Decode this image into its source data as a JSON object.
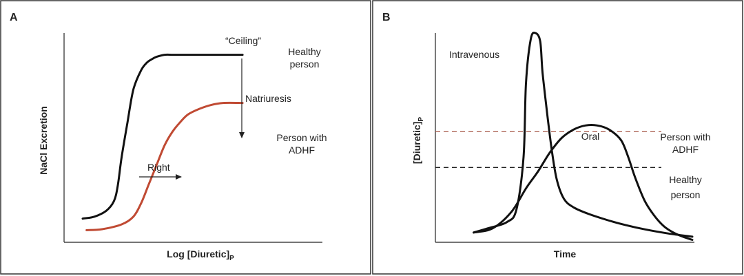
{
  "chart_data": [
    {
      "panel": "A",
      "type": "line",
      "xlabel": "Log [Diuretic]",
      "xlabel_subscript": "P",
      "ylabel": "NaCl Excretion",
      "x_range": [
        0,
        10
      ],
      "y_range": [
        0,
        10
      ],
      "grid": false,
      "series": [
        {
          "name": "Healthy person",
          "color": "#111111",
          "x": [
            0.0,
            0.6,
            1.2,
            1.6,
            1.8,
            2.0,
            2.3,
            2.6,
            3.0,
            3.3,
            3.6,
            3.8,
            4.2,
            4.6,
            5.0,
            5.6,
            6.2,
            7.0,
            8.2
          ],
          "y": [
            0.8,
            0.9,
            1.2,
            1.7,
            2.5,
            4.0,
            5.8,
            7.5,
            8.5,
            8.9,
            9.1,
            9.2,
            9.3,
            9.3,
            9.3,
            9.3,
            9.3,
            9.3,
            9.3
          ]
        },
        {
          "name": "Person with ADHF",
          "color": "#c04a33",
          "x": [
            0.2,
            1.0,
            2.0,
            2.6,
            3.0,
            3.4,
            3.8,
            4.2,
            4.6,
            5.0,
            5.4,
            6.0,
            6.6,
            7.2,
            8.2
          ],
          "y": [
            0.2,
            0.25,
            0.5,
            0.9,
            1.6,
            2.6,
            3.6,
            4.6,
            5.3,
            5.8,
            6.2,
            6.5,
            6.7,
            6.8,
            6.8
          ]
        }
      ],
      "annotations": {
        "ceiling": "“Ceiling”",
        "healthy_line1": "Healthy",
        "healthy_line2": "person",
        "natriuresis": "Natriuresis",
        "adhf_line1": "Person with",
        "adhf_line2": "ADHF",
        "right": "Right"
      }
    },
    {
      "panel": "B",
      "type": "line",
      "xlabel": "Time",
      "ylabel": "[Diuretic]",
      "ylabel_subscript": "P",
      "x_range": [
        0,
        10
      ],
      "y_range": [
        0,
        10
      ],
      "grid": false,
      "series": [
        {
          "name": "Intravenous",
          "color": "#111111",
          "x": [
            0.8,
            1.4,
            2.2,
            2.6,
            2.9,
            3.0,
            3.2,
            3.4,
            3.6,
            3.7,
            3.9,
            4.1,
            4.3,
            4.6,
            5.0,
            5.6,
            6.4,
            7.2,
            8.0,
            9.0,
            10.0
          ],
          "y": [
            0.4,
            0.6,
            0.9,
            1.5,
            4.0,
            7.5,
            9.6,
            9.9,
            9.5,
            8.0,
            6.0,
            4.2,
            2.9,
            2.0,
            1.6,
            1.3,
            1.0,
            0.75,
            0.55,
            0.35,
            0.2
          ]
        },
        {
          "name": "Oral",
          "color": "#111111",
          "x": [
            0.8,
            1.6,
            2.4,
            3.0,
            3.5,
            4.0,
            4.5,
            5.0,
            5.5,
            6.0,
            6.5,
            7.0,
            7.3,
            7.6,
            8.0,
            8.4,
            8.8,
            9.2,
            9.6,
            10.0
          ],
          "y": [
            0.4,
            0.6,
            1.4,
            2.5,
            3.3,
            4.2,
            4.9,
            5.3,
            5.5,
            5.5,
            5.3,
            4.8,
            4.0,
            3.0,
            1.9,
            1.2,
            0.7,
            0.4,
            0.2,
            0.05
          ]
        }
      ],
      "thresholds": [
        {
          "name": "Person with ADHF",
          "y": 5.2,
          "color": "#a85a4a",
          "style": "dashed",
          "label_line1": "Person with",
          "label_line2": "ADHF"
        },
        {
          "name": "Healthy person",
          "y": 3.5,
          "color": "#222222",
          "style": "dashed",
          "label_line1": "Healthy",
          "label_line2": "person"
        }
      ],
      "annotations": {
        "intravenous": "Intravenous",
        "oral": "Oral"
      }
    }
  ]
}
